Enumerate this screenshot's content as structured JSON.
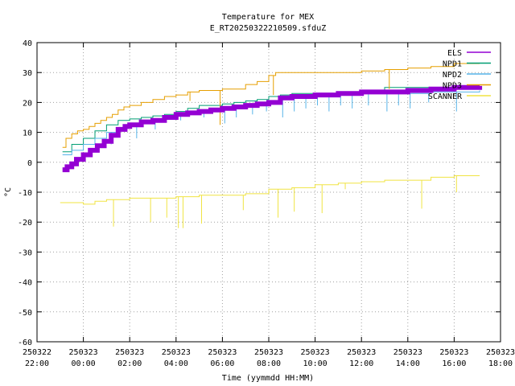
{
  "chart_data": {
    "type": "line",
    "title": "Temperature for MEX",
    "subtitle": "E_RT20250322210509.sfduZ",
    "xlabel": "Time (yymmdd HH:MM)",
    "ylabel": "°C",
    "grid": true,
    "legend_position": "top-right",
    "ylim": [
      -60,
      40
    ],
    "xlim_hours": [
      -2,
      18
    ],
    "yticks": [
      "-60",
      "-50",
      "-40",
      "-30",
      "-20",
      "-10",
      "0",
      "10",
      "20",
      "30",
      "40"
    ],
    "xticks": [
      {
        "h": -2,
        "date": "250322",
        "time": "22:00"
      },
      {
        "h": 0,
        "date": "250323",
        "time": "00:00"
      },
      {
        "h": 2,
        "date": "250323",
        "time": "02:00"
      },
      {
        "h": 4,
        "date": "250323",
        "time": "04:00"
      },
      {
        "h": 6,
        "date": "250323",
        "time": "06:00"
      },
      {
        "h": 8,
        "date": "250323",
        "time": "08:00"
      },
      {
        "h": 10,
        "date": "250323",
        "time": "10:00"
      },
      {
        "h": 12,
        "date": "250323",
        "time": "12:00"
      },
      {
        "h": 14,
        "date": "250323",
        "time": "14:00"
      },
      {
        "h": 16,
        "date": "250323",
        "time": "16:00"
      },
      {
        "h": 18,
        "date": "250323",
        "time": "18:00"
      }
    ],
    "series": [
      {
        "name": "NPD1",
        "color": "#009e73",
        "width": 1,
        "points": [
          [
            -0.9,
            3.5
          ],
          [
            -0.5,
            6
          ],
          [
            0,
            8
          ],
          [
            0.5,
            10.5
          ],
          [
            1,
            12.5
          ],
          [
            1.5,
            14
          ],
          [
            2,
            14.5
          ],
          [
            2.5,
            15
          ],
          [
            3,
            15.5
          ],
          [
            3.5,
            16
          ],
          [
            4,
            17
          ],
          [
            4.5,
            18
          ],
          [
            5,
            19
          ],
          [
            5.5,
            19
          ],
          [
            6,
            19.5
          ],
          [
            6.5,
            20
          ],
          [
            7,
            20.5
          ],
          [
            7.5,
            21
          ],
          [
            8,
            22
          ],
          [
            8.5,
            22.5
          ],
          [
            9,
            23
          ],
          [
            10,
            23
          ],
          [
            11,
            23.5
          ],
          [
            12,
            24
          ],
          [
            13,
            25
          ],
          [
            14,
            25
          ],
          [
            15,
            25
          ],
          [
            16,
            25.5
          ],
          [
            17.1,
            25.5
          ]
        ]
      },
      {
        "name": "NPD2",
        "color": "#56b4e9",
        "width": 1,
        "points": [
          [
            -0.9,
            2.5
          ],
          [
            -0.5,
            4
          ],
          [
            0,
            6
          ],
          [
            0.5,
            8
          ],
          [
            1,
            10
          ],
          [
            1.5,
            11.5
          ],
          [
            2,
            12.5
          ],
          [
            2.5,
            13
          ],
          [
            3,
            14
          ],
          [
            3.5,
            15
          ],
          [
            4,
            16
          ],
          [
            4.5,
            17
          ],
          [
            5,
            17.5
          ],
          [
            5.5,
            18
          ],
          [
            6,
            18
          ],
          [
            6.5,
            18.5
          ],
          [
            7,
            19
          ],
          [
            7.5,
            19.5
          ],
          [
            8,
            20
          ],
          [
            8.5,
            21
          ],
          [
            9,
            21.5
          ],
          [
            10,
            22
          ],
          [
            11,
            22.5
          ],
          [
            12,
            23
          ],
          [
            13,
            23
          ],
          [
            14,
            23
          ],
          [
            15,
            23.5
          ],
          [
            16,
            23.5
          ],
          [
            17.1,
            24
          ]
        ],
        "spikes": [
          [
            1.2,
            6
          ],
          [
            2.3,
            8
          ],
          [
            3.1,
            11
          ],
          [
            4.2,
            14
          ],
          [
            5.2,
            15
          ],
          [
            6.1,
            13
          ],
          [
            6.6,
            15
          ],
          [
            7.3,
            16
          ],
          [
            7.9,
            17
          ],
          [
            8.6,
            15
          ],
          [
            9.1,
            17
          ],
          [
            9.6,
            18
          ],
          [
            10.1,
            19
          ],
          [
            10.6,
            17
          ],
          [
            11.1,
            19
          ],
          [
            11.6,
            18
          ],
          [
            12.3,
            19
          ],
          [
            13.1,
            17
          ],
          [
            13.6,
            19
          ],
          [
            14.1,
            18
          ],
          [
            14.9,
            20
          ],
          [
            16.1,
            17
          ]
        ]
      },
      {
        "name": "NPD3",
        "color": "#e69f00",
        "width": 1,
        "points": [
          [
            -0.9,
            5
          ],
          [
            -0.75,
            8
          ],
          [
            -0.5,
            9.5
          ],
          [
            -0.25,
            10.5
          ],
          [
            0,
            11
          ],
          [
            0.25,
            12
          ],
          [
            0.5,
            13
          ],
          [
            0.75,
            14
          ],
          [
            1,
            15
          ],
          [
            1.25,
            16
          ],
          [
            1.5,
            17.5
          ],
          [
            1.75,
            18.5
          ],
          [
            2,
            19
          ],
          [
            2.5,
            20
          ],
          [
            3,
            21
          ],
          [
            3.5,
            22
          ],
          [
            4,
            22.5
          ],
          [
            4.5,
            23.5
          ],
          [
            5,
            24
          ],
          [
            6,
            24.5
          ],
          [
            7,
            26
          ],
          [
            7.5,
            27
          ],
          [
            8,
            29
          ],
          [
            8.3,
            30
          ],
          [
            9,
            30
          ],
          [
            10,
            30
          ],
          [
            11,
            30
          ],
          [
            12,
            30.5
          ],
          [
            13,
            31
          ],
          [
            14,
            31.5
          ],
          [
            15,
            32
          ],
          [
            16,
            33
          ],
          [
            17.1,
            33
          ]
        ],
        "spikes": [
          [
            5.9,
            12.5
          ],
          [
            4.6,
            20.5
          ],
          [
            8.2,
            22.5
          ],
          [
            13.2,
            24.5
          ]
        ]
      },
      {
        "name": "SCANNER",
        "color": "#f0e442",
        "width": 1,
        "points": [
          [
            -1,
            -13.5
          ],
          [
            0,
            -14
          ],
          [
            0.5,
            -13
          ],
          [
            1,
            -12.5
          ],
          [
            2,
            -12
          ],
          [
            3,
            -12
          ],
          [
            4,
            -11.5
          ],
          [
            5,
            -11
          ],
          [
            6,
            -11
          ],
          [
            7,
            -10.5
          ],
          [
            8,
            -9
          ],
          [
            9,
            -8.5
          ],
          [
            10,
            -7.5
          ],
          [
            11,
            -7
          ],
          [
            12,
            -6.5
          ],
          [
            13,
            -6
          ],
          [
            14,
            -6
          ],
          [
            15,
            -5
          ],
          [
            16,
            -4.5
          ],
          [
            17.1,
            -4.5
          ]
        ],
        "spikes": [
          [
            1.3,
            -21.5
          ],
          [
            2.9,
            -20
          ],
          [
            3.6,
            -18.5
          ],
          [
            4.1,
            -22
          ],
          [
            4.3,
            -22
          ],
          [
            5.1,
            -20.5
          ],
          [
            6.9,
            -16
          ],
          [
            8.4,
            -18.5
          ],
          [
            9.1,
            -16.5
          ],
          [
            10.3,
            -17
          ],
          [
            11.3,
            -9
          ],
          [
            14.6,
            -15.5
          ],
          [
            16.1,
            -10
          ]
        ]
      },
      {
        "name": "ELS",
        "color": "#9400d3",
        "width": 6,
        "points": [
          [
            -0.9,
            -2.5
          ],
          [
            -0.7,
            -1.5
          ],
          [
            -0.5,
            -0.5
          ],
          [
            -0.3,
            1
          ],
          [
            0,
            2.5
          ],
          [
            0.3,
            4
          ],
          [
            0.6,
            5.5
          ],
          [
            0.9,
            7
          ],
          [
            1.2,
            9
          ],
          [
            1.5,
            11
          ],
          [
            1.8,
            12
          ],
          [
            2,
            12.5
          ],
          [
            2.5,
            13.5
          ],
          [
            3,
            14
          ],
          [
            3.5,
            15
          ],
          [
            4,
            16
          ],
          [
            4.5,
            16.5
          ],
          [
            5,
            17
          ],
          [
            5.5,
            17.5
          ],
          [
            6,
            18
          ],
          [
            6.5,
            18.5
          ],
          [
            7,
            19
          ],
          [
            7.5,
            19.5
          ],
          [
            8,
            20
          ],
          [
            8.5,
            21.5
          ],
          [
            9,
            22
          ],
          [
            10,
            22.5
          ],
          [
            11,
            23
          ],
          [
            12,
            23.5
          ],
          [
            13,
            23.5
          ],
          [
            14,
            24
          ],
          [
            15,
            24.5
          ],
          [
            16,
            25
          ],
          [
            17.1,
            25.5
          ]
        ]
      }
    ]
  }
}
